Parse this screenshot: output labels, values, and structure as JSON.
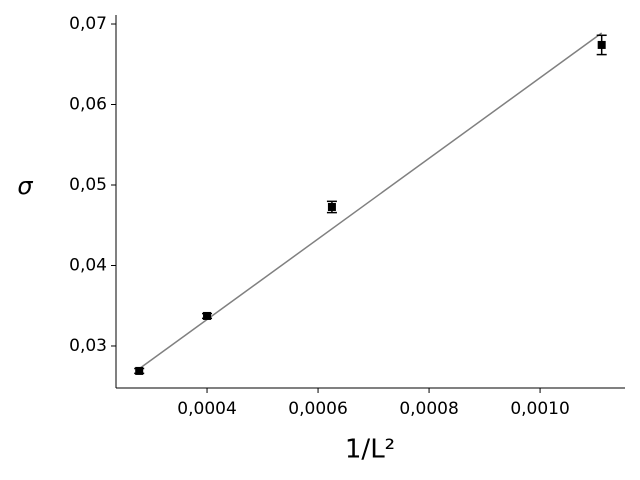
{
  "chart_data": {
    "type": "scatter",
    "xlabel": "1/L²",
    "ylabel": "σ",
    "x": [
      0.0002778,
      0.0004,
      0.000625,
      0.001111
    ],
    "values": [
      0.0269,
      0.03373,
      0.04727,
      0.0674
    ],
    "errors": [
      0.0003,
      0.0003,
      0.0007,
      0.0012
    ],
    "color": "#000000",
    "fit": {
      "x": [
        0.0002778,
        0.001111
      ],
      "values": [
        0.02717,
        0.06888
      ],
      "color": "#808080"
    },
    "xlim": [
      0.000236,
      0.001153
    ],
    "ylim": [
      0.02478,
      0.07112
    ],
    "xticks": [
      {
        "value": 0.0004,
        "label": "0,0004"
      },
      {
        "value": 0.0006,
        "label": "0,0006"
      },
      {
        "value": 0.0008,
        "label": "0,0008"
      },
      {
        "value": 0.001,
        "label": "0,0010"
      }
    ],
    "yticks": [
      {
        "value": 0.03,
        "label": "0,03"
      },
      {
        "value": 0.04,
        "label": "0,04"
      },
      {
        "value": 0.05,
        "label": "0,05"
      },
      {
        "value": 0.06,
        "label": "0,06"
      },
      {
        "value": 0.07,
        "label": "0,07"
      }
    ]
  }
}
